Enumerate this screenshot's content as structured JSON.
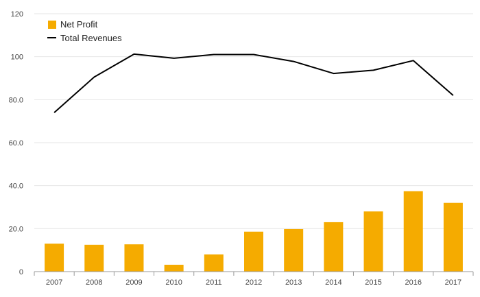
{
  "chart_data": {
    "type": "bar+line",
    "categories": [
      "2007",
      "2008",
      "2009",
      "2010",
      "2011",
      "2012",
      "2013",
      "2014",
      "2015",
      "2016",
      "2017"
    ],
    "series": [
      {
        "name": "Net Profit",
        "type": "bar",
        "color": "#f5ab00",
        "values": [
          13.0,
          12.5,
          12.7,
          3.2,
          8.0,
          18.6,
          19.8,
          23.0,
          28.0,
          37.4,
          32.0
        ]
      },
      {
        "name": "Total Revenues",
        "type": "line",
        "color": "#000000",
        "values": [
          74.0,
          90.5,
          101.2,
          99.3,
          101.0,
          101.0,
          97.8,
          92.2,
          93.7,
          98.2,
          82.0
        ]
      }
    ],
    "ylim": [
      0,
      120
    ],
    "ytick_values": [
      0,
      20,
      40,
      60,
      80,
      100,
      120
    ],
    "ytick_labels": [
      "0",
      "20.0",
      "40.0",
      "60.0",
      "80.0",
      "100",
      "120"
    ],
    "legend": [
      "Net Profit",
      "Total Revenues"
    ],
    "legend_position": "top-left",
    "grid": true,
    "title": "",
    "xlabel": "",
    "ylabel": ""
  }
}
